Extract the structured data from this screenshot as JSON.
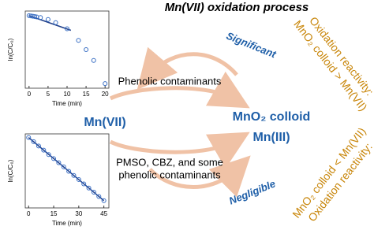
{
  "title": "Mn(VII) oxidation process",
  "labels": {
    "mn7": "Mn(VII)",
    "colloid": "MnO₂ colloid",
    "mn3": "Mn(III)",
    "phenolic": "Phenolic contaminants",
    "pmso_1": "PMSO, CBZ, and some",
    "pmso_2": "phenolic contaminants",
    "significant": "Significant",
    "negligible": "Negligible",
    "react_top_1": "Oxidation reactivity:",
    "react_top_2": "MnO₂ colloid > Mn(VII)",
    "react_bot_1": "Oxidation reactivity:",
    "react_bot_2": "MnO₂ colloid < Mn(VII)"
  },
  "chart_data": [
    {
      "type": "scatter",
      "x_label": "Time (min)",
      "y_label": "ln(C/C₀)",
      "color": "#3a6fc4",
      "x": [
        0,
        0.5,
        1,
        1.5,
        2,
        3,
        5,
        7,
        10,
        13,
        15,
        17,
        20
      ],
      "values": [
        0,
        -0.02,
        -0.04,
        -0.06,
        -0.08,
        -0.12,
        -0.25,
        -0.45,
        -0.85,
        -1.6,
        -2.2,
        -2.9,
        -4.4
      ],
      "fit": {
        "x": [
          0,
          11
        ],
        "values": [
          0,
          -0.95
        ]
      },
      "xlim": [
        -1,
        21
      ],
      "xticks": [
        0,
        5,
        10,
        15,
        20
      ],
      "ylim": [
        -4.7,
        0.3
      ]
    },
    {
      "type": "scatter",
      "x_label": "Time (min)",
      "y_label": "ln(C/C₀)",
      "color": "#3a6fc4",
      "x": [
        0,
        3,
        6,
        9,
        12,
        15,
        18,
        21,
        24,
        27,
        30,
        33,
        36,
        39,
        42,
        45
      ],
      "values": [
        0,
        -0.17,
        -0.35,
        -0.52,
        -0.7,
        -0.87,
        -1.04,
        -1.21,
        -1.39,
        -1.56,
        -1.73,
        -1.91,
        -2.08,
        -2.25,
        -2.43,
        -2.6
      ],
      "fit": {
        "x": [
          0,
          45
        ],
        "values": [
          0,
          -2.6
        ]
      },
      "xlim": [
        -2,
        48
      ],
      "xticks": [
        0,
        15,
        30,
        45
      ],
      "ylim": [
        -2.9,
        0.15
      ]
    }
  ]
}
